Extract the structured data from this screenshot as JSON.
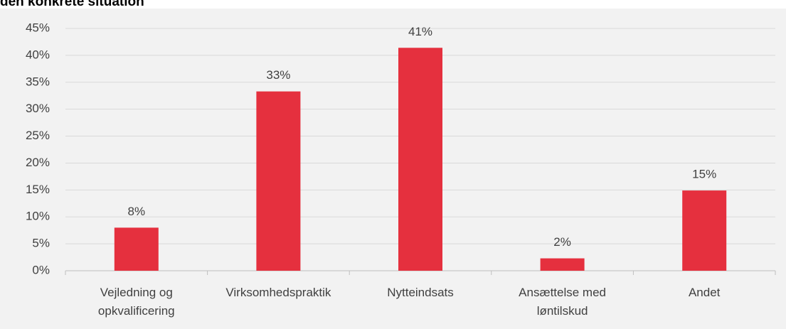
{
  "chart_data": {
    "type": "bar",
    "title": "den konkrete situation",
    "categories": [
      "Vejledning og opkvalificering",
      "Virksomhedspraktik",
      "Nytteindsats",
      "Ansættelse med løntilskud",
      "Andet"
    ],
    "values": [
      8,
      33.3,
      41.4,
      2.3,
      14.9
    ],
    "value_labels": [
      "8%",
      "33%",
      "41%",
      "2%",
      "15%"
    ],
    "color": "#e5303e",
    "ylim": [
      0,
      45
    ],
    "yticks": [
      {
        "value": 0,
        "label": "0%"
      },
      {
        "value": 5,
        "label": "5%"
      },
      {
        "value": 10,
        "label": "10%"
      },
      {
        "value": 15,
        "label": "15%"
      },
      {
        "value": 20,
        "label": "20%"
      },
      {
        "value": 25,
        "label": "25%"
      },
      {
        "value": 30,
        "label": "30%"
      },
      {
        "value": 35,
        "label": "35%"
      },
      {
        "value": 40,
        "label": "40%"
      },
      {
        "value": 45,
        "label": "45%"
      }
    ],
    "grid": true
  }
}
